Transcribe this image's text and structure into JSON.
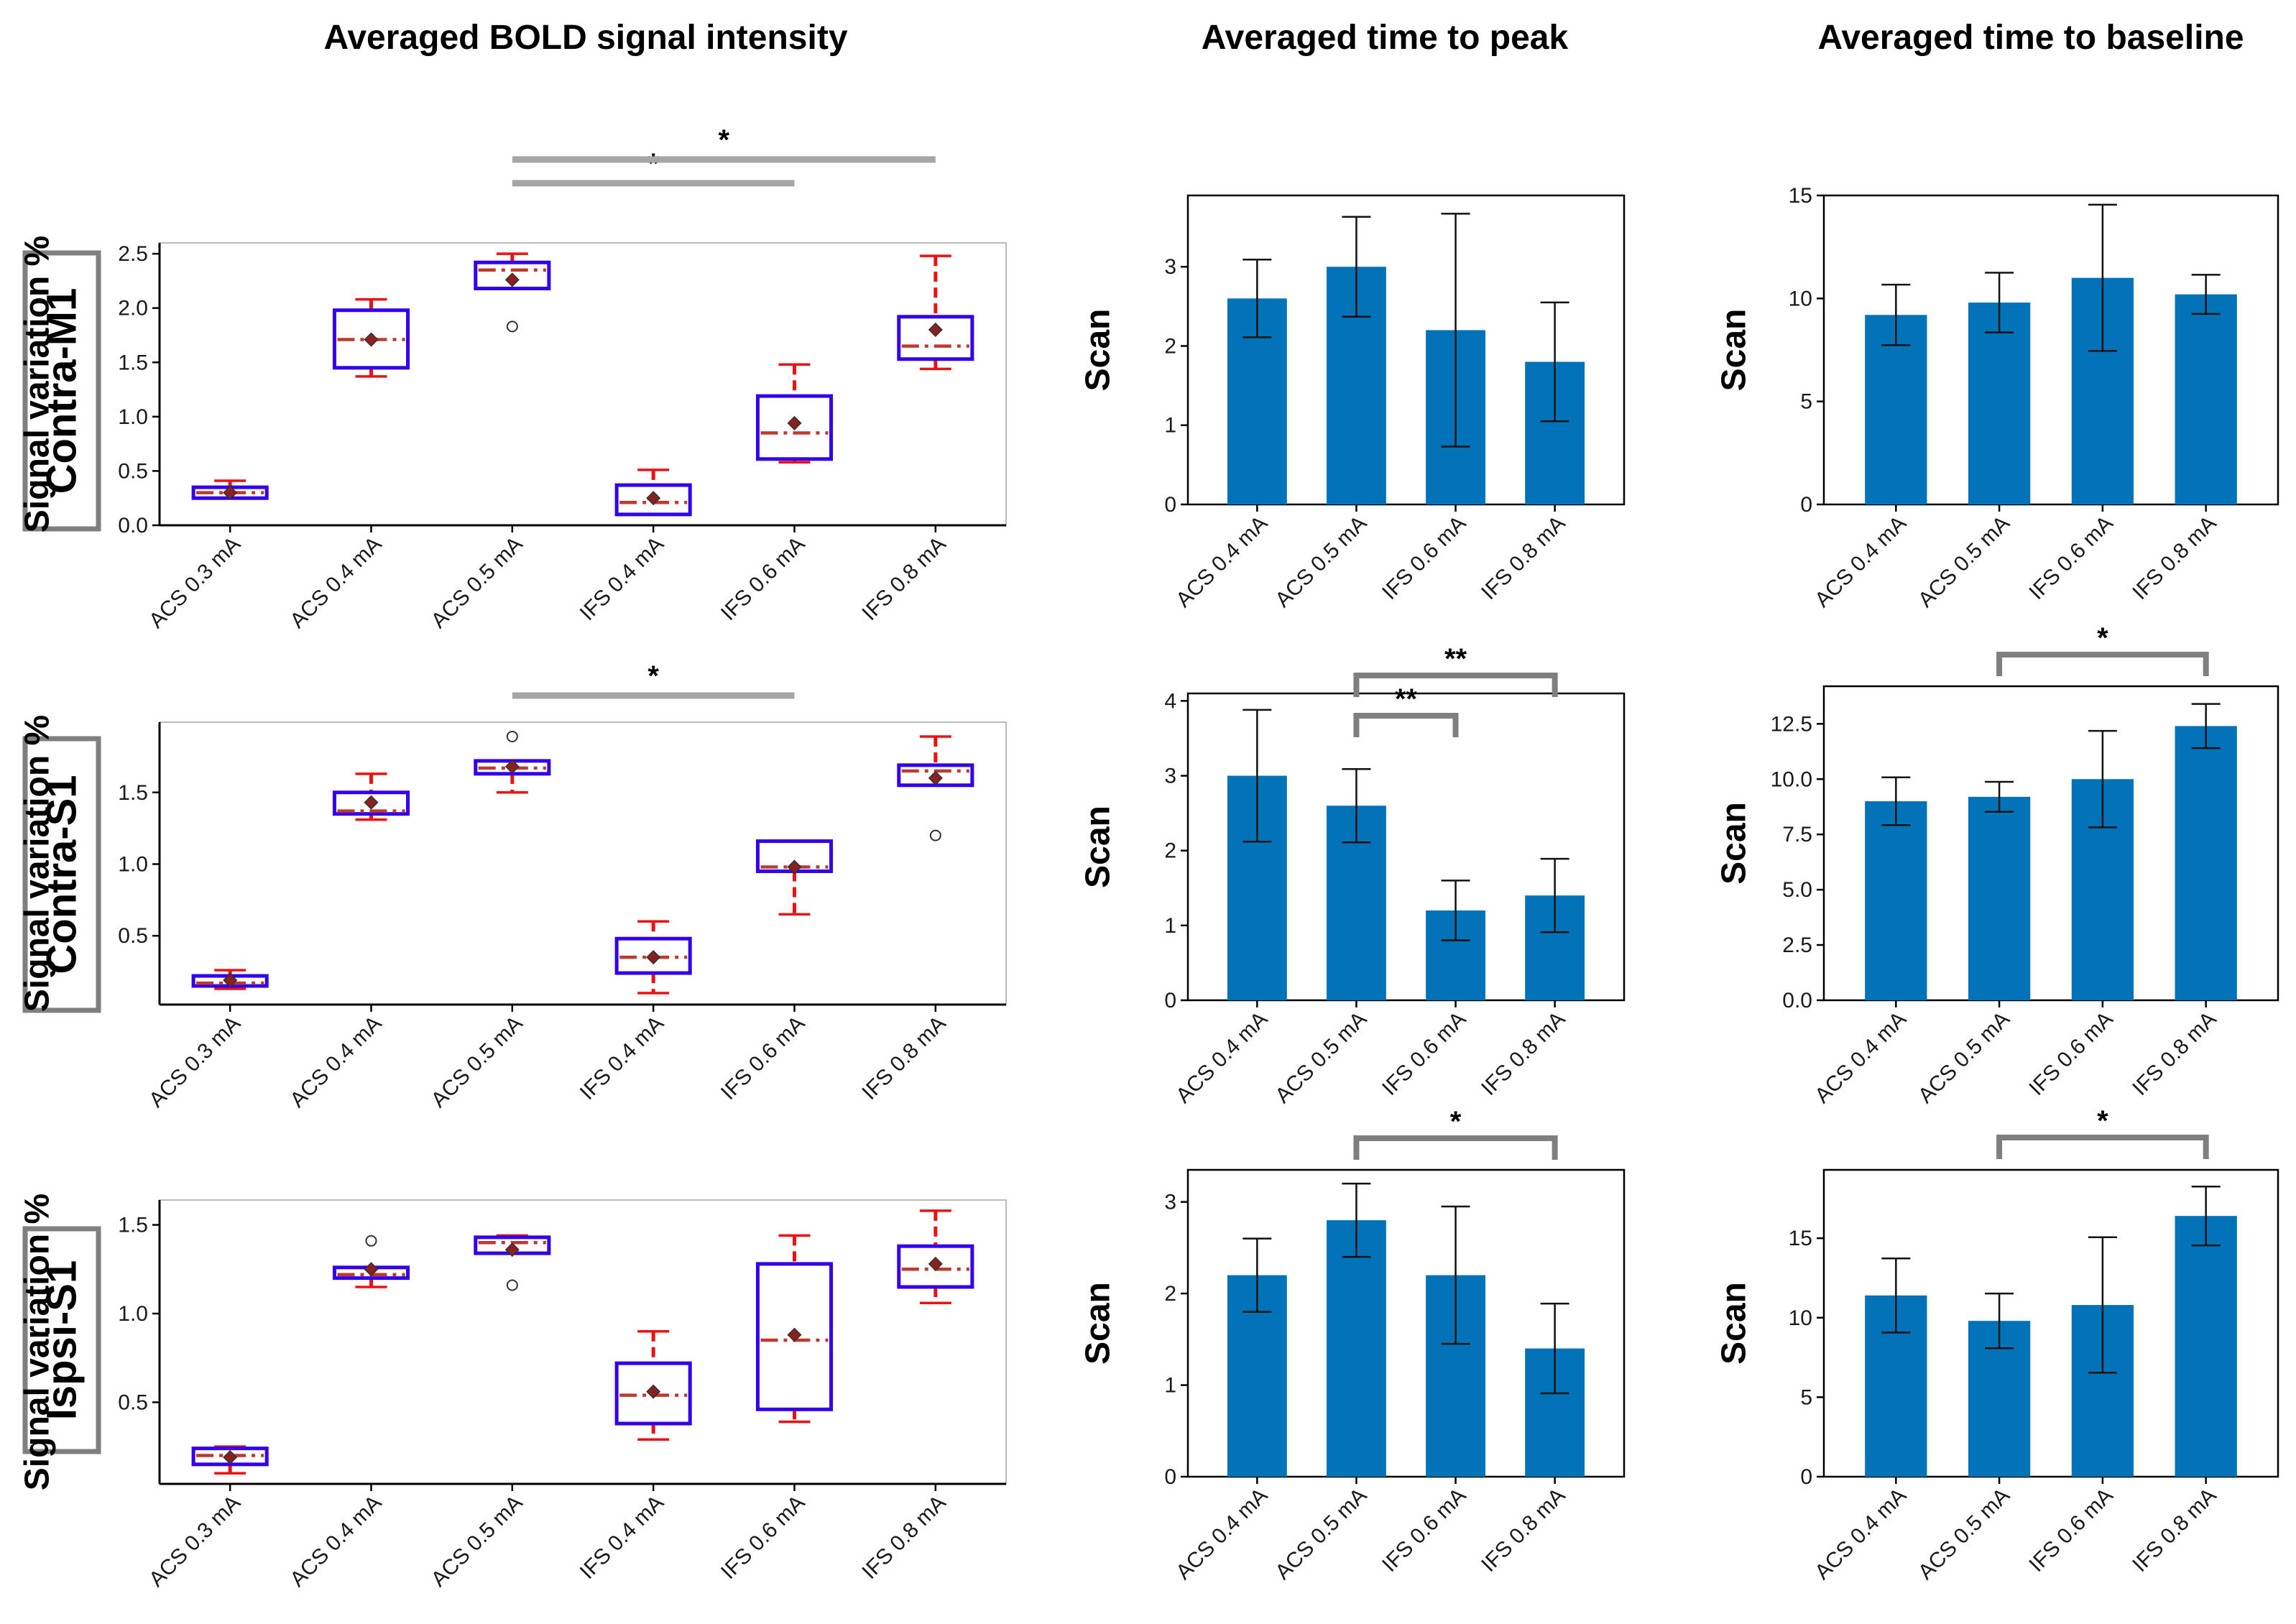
{
  "column_titles": [
    "Averaged BOLD signal intensity",
    "Averaged time to peak",
    "Averaged time to baseline"
  ],
  "row_labels": [
    "Contra-M1",
    "Contra-S1",
    "Ispsi-S1"
  ],
  "colors": {
    "bar": "#0273b9",
    "box_edge": "#3300ee",
    "whisker": "#ee1111",
    "median": "#c03a2b",
    "mean_marker": "#8b2020",
    "significance_bar_plain": "#a6a6a6",
    "significance_bar_bracket": "#7f7f7f",
    "axis": "#000000"
  },
  "chart_data": [
    {
      "id": "bold_m1",
      "type": "box",
      "row": 0,
      "col": 0,
      "title": "Averaged BOLD signal intensity",
      "ylabel": "Signal variation %",
      "row_label": "Contra-M1",
      "categories": [
        "ACS 0.3 mA",
        "ACS 0.4 mA",
        "ACS 0.5 mA",
        "IFS 0.4 mA",
        "IFS 0.6 mA",
        "IFS 0.8 mA"
      ],
      "ylim": [
        0,
        2.6
      ],
      "yticks": [
        0.0,
        0.5,
        1.0,
        1.5,
        2.0,
        2.5
      ],
      "ytick_labels": [
        "0.0",
        "0.5",
        "1.0",
        "1.5",
        "2.0",
        "2.5"
      ],
      "boxes": [
        {
          "whislo": 0.25,
          "q1": 0.25,
          "med": 0.3,
          "q3": 0.35,
          "whishi": 0.41,
          "mean": 0.3,
          "fliers": []
        },
        {
          "whislo": 1.37,
          "q1": 1.45,
          "med": 1.71,
          "q3": 1.98,
          "whishi": 2.08,
          "mean": 1.71,
          "fliers": []
        },
        {
          "whislo": 2.18,
          "q1": 2.18,
          "med": 2.35,
          "q3": 2.42,
          "whishi": 2.5,
          "mean": 2.26,
          "fliers": [
            1.83
          ]
        },
        {
          "whislo": 0.1,
          "q1": 0.1,
          "med": 0.21,
          "q3": 0.37,
          "whishi": 0.51,
          "mean": 0.25,
          "fliers": []
        },
        {
          "whislo": 0.58,
          "q1": 0.61,
          "med": 0.85,
          "q3": 1.19,
          "whishi": 1.48,
          "mean": 0.94,
          "fliers": []
        },
        {
          "whislo": 1.44,
          "q1": 1.53,
          "med": 1.65,
          "q3": 1.92,
          "whishi": 2.48,
          "mean": 1.8,
          "fliers": []
        }
      ],
      "significance": [
        {
          "from": 2,
          "to": 4,
          "label": "*",
          "style": "plain"
        },
        {
          "from": 2,
          "to": 5,
          "label": "*",
          "style": "plain"
        }
      ]
    },
    {
      "id": "ttp_m1",
      "type": "bar",
      "row": 0,
      "col": 1,
      "title": "Averaged time to peak",
      "ylabel": "Scan",
      "row_label": "Contra-M1",
      "categories": [
        "ACS 0.4 mA",
        "ACS 0.5 mA",
        "IFS 0.6 mA",
        "IFS 0.8 mA"
      ],
      "values": [
        2.6,
        3.0,
        2.2,
        1.8
      ],
      "err": [
        0.49,
        0.63,
        1.47,
        0.75
      ],
      "ylim": [
        0,
        3.9
      ],
      "yticks": [
        0,
        1,
        2,
        3
      ],
      "ytick_labels": [
        "0",
        "1",
        "2",
        "3"
      ],
      "significance": []
    },
    {
      "id": "ttb_m1",
      "type": "bar",
      "row": 0,
      "col": 2,
      "title": "Averaged time to baseline",
      "ylabel": "Scan",
      "row_label": "Contra-M1",
      "categories": [
        "ACS 0.4 mA",
        "ACS 0.5 mA",
        "IFS 0.6 mA",
        "IFS 0.8 mA"
      ],
      "values": [
        9.2,
        9.8,
        11.0,
        10.2
      ],
      "err": [
        1.47,
        1.45,
        3.55,
        0.95
      ],
      "ylim": [
        0,
        15
      ],
      "yticks": [
        0,
        5,
        10,
        15
      ],
      "ytick_labels": [
        "0",
        "5",
        "10",
        "15"
      ],
      "significance": []
    },
    {
      "id": "bold_s1",
      "type": "box",
      "row": 1,
      "col": 0,
      "title": "Averaged BOLD signal intensity",
      "ylabel": "Signal variation %",
      "row_label": "Contra-S1",
      "categories": [
        "ACS 0.3 mA",
        "ACS 0.4 mA",
        "ACS 0.5 mA",
        "IFS 0.4 mA",
        "IFS 0.6 mA",
        "IFS 0.8 mA"
      ],
      "ylim": [
        0.02,
        1.99
      ],
      "yticks": [
        0.5,
        1.0,
        1.5
      ],
      "ytick_labels": [
        "0.5",
        "1.0",
        "1.5"
      ],
      "boxes": [
        {
          "whislo": 0.13,
          "q1": 0.15,
          "med": 0.17,
          "q3": 0.22,
          "whishi": 0.26,
          "mean": 0.19,
          "fliers": []
        },
        {
          "whislo": 1.31,
          "q1": 1.35,
          "med": 1.37,
          "q3": 1.5,
          "whishi": 1.63,
          "mean": 1.43,
          "fliers": []
        },
        {
          "whislo": 1.5,
          "q1": 1.63,
          "med": 1.67,
          "q3": 1.72,
          "whishi": 1.72,
          "mean": 1.68,
          "fliers": [
            1.89
          ]
        },
        {
          "whislo": 0.1,
          "q1": 0.24,
          "med": 0.35,
          "q3": 0.48,
          "whishi": 0.6,
          "mean": 0.35,
          "fliers": []
        },
        {
          "whislo": 0.65,
          "q1": 0.95,
          "med": 0.98,
          "q3": 1.16,
          "whishi": 1.16,
          "mean": 0.98,
          "fliers": []
        },
        {
          "whislo": 1.55,
          "q1": 1.55,
          "med": 1.65,
          "q3": 1.69,
          "whishi": 1.89,
          "mean": 1.6,
          "fliers": [
            1.2
          ]
        }
      ],
      "significance": [
        {
          "from": 2,
          "to": 4,
          "label": "*",
          "style": "plain"
        }
      ]
    },
    {
      "id": "ttp_s1",
      "type": "bar",
      "row": 1,
      "col": 1,
      "title": "Averaged time to peak",
      "ylabel": "Scan",
      "row_label": "Contra-S1",
      "categories": [
        "ACS 0.4 mA",
        "ACS 0.5 mA",
        "IFS 0.6 mA",
        "IFS 0.8 mA"
      ],
      "values": [
        3.0,
        2.6,
        1.2,
        1.4
      ],
      "err": [
        0.88,
        0.49,
        0.4,
        0.49
      ],
      "ylim": [
        0,
        4.1
      ],
      "yticks": [
        0,
        1,
        2,
        3,
        4
      ],
      "ytick_labels": [
        "0",
        "1",
        "2",
        "3",
        "4"
      ],
      "significance": [
        {
          "from": 1,
          "to": 2,
          "label": "**",
          "style": "bracket"
        },
        {
          "from": 1,
          "to": 3,
          "label": "**",
          "style": "bracket"
        }
      ]
    },
    {
      "id": "ttb_s1",
      "type": "bar",
      "row": 1,
      "col": 2,
      "title": "Averaged time to baseline",
      "ylabel": "Scan",
      "row_label": "Contra-S1",
      "categories": [
        "ACS 0.4 mA",
        "ACS 0.5 mA",
        "IFS 0.6 mA",
        "IFS 0.8 mA"
      ],
      "values": [
        9.0,
        9.2,
        10.0,
        12.4
      ],
      "err": [
        1.08,
        0.68,
        2.18,
        1.0
      ],
      "ylim": [
        0,
        14.2
      ],
      "yticks": [
        0.0,
        2.5,
        5.0,
        7.5,
        10.0,
        12.5
      ],
      "ytick_labels": [
        "0.0",
        "2.5",
        "5.0",
        "7.5",
        "10.0",
        "12.5"
      ],
      "significance": [
        {
          "from": 1,
          "to": 3,
          "label": "*",
          "style": "bracket"
        }
      ]
    },
    {
      "id": "bold_is1",
      "type": "box",
      "row": 2,
      "col": 0,
      "title": "Averaged BOLD signal intensity",
      "ylabel": "Signal variation %",
      "row_label": "Ispsi-S1",
      "categories": [
        "ACS 0.3 mA",
        "ACS 0.4 mA",
        "ACS 0.5 mA",
        "IFS 0.4 mA",
        "IFS 0.6 mA",
        "IFS 0.8 mA"
      ],
      "ylim": [
        0.04,
        1.64
      ],
      "yticks": [
        0.5,
        1.0,
        1.5
      ],
      "ytick_labels": [
        "0.5",
        "1.0",
        "1.5"
      ],
      "boxes": [
        {
          "whislo": 0.1,
          "q1": 0.15,
          "med": 0.2,
          "q3": 0.24,
          "whishi": 0.25,
          "mean": 0.19,
          "fliers": []
        },
        {
          "whislo": 1.15,
          "q1": 1.2,
          "med": 1.22,
          "q3": 1.26,
          "whishi": 1.26,
          "mean": 1.25,
          "fliers": [
            1.41
          ]
        },
        {
          "whislo": 1.34,
          "q1": 1.34,
          "med": 1.4,
          "q3": 1.43,
          "whishi": 1.44,
          "mean": 1.36,
          "fliers": [
            1.16
          ]
        },
        {
          "whislo": 0.29,
          "q1": 0.38,
          "med": 0.54,
          "q3": 0.72,
          "whishi": 0.9,
          "mean": 0.56,
          "fliers": []
        },
        {
          "whislo": 0.39,
          "q1": 0.46,
          "med": 0.85,
          "q3": 1.28,
          "whishi": 1.44,
          "mean": 0.88,
          "fliers": []
        },
        {
          "whislo": 1.06,
          "q1": 1.15,
          "med": 1.25,
          "q3": 1.38,
          "whishi": 1.58,
          "mean": 1.28,
          "fliers": []
        }
      ],
      "significance": []
    },
    {
      "id": "ttp_is1",
      "type": "bar",
      "row": 2,
      "col": 1,
      "title": "Averaged time to peak",
      "ylabel": "Scan",
      "row_label": "Ispsi-S1",
      "categories": [
        "ACS 0.4 mA",
        "ACS 0.5 mA",
        "IFS 0.6 mA",
        "IFS 0.8 mA"
      ],
      "values": [
        2.2,
        2.8,
        2.2,
        1.4
      ],
      "err": [
        0.4,
        0.4,
        0.75,
        0.49
      ],
      "ylim": [
        0,
        3.35
      ],
      "yticks": [
        0,
        1,
        2,
        3
      ],
      "ytick_labels": [
        "0",
        "1",
        "2",
        "3"
      ],
      "significance": [
        {
          "from": 1,
          "to": 3,
          "label": "*",
          "style": "bracket"
        }
      ]
    },
    {
      "id": "ttb_is1",
      "type": "bar",
      "row": 2,
      "col": 2,
      "title": "Averaged time to baseline",
      "ylabel": "Scan",
      "row_label": "Ispsi-S1",
      "categories": [
        "ACS 0.4 mA",
        "ACS 0.5 mA",
        "IFS 0.6 mA",
        "IFS 0.8 mA"
      ],
      "values": [
        11.4,
        9.8,
        10.8,
        16.4
      ],
      "err": [
        2.33,
        1.72,
        4.26,
        1.85
      ],
      "ylim": [
        0,
        19.3
      ],
      "yticks": [
        0,
        5,
        10,
        15
      ],
      "ytick_labels": [
        "0",
        "5",
        "10",
        "15"
      ],
      "significance": [
        {
          "from": 1,
          "to": 3,
          "label": "*",
          "style": "bracket"
        }
      ]
    }
  ]
}
